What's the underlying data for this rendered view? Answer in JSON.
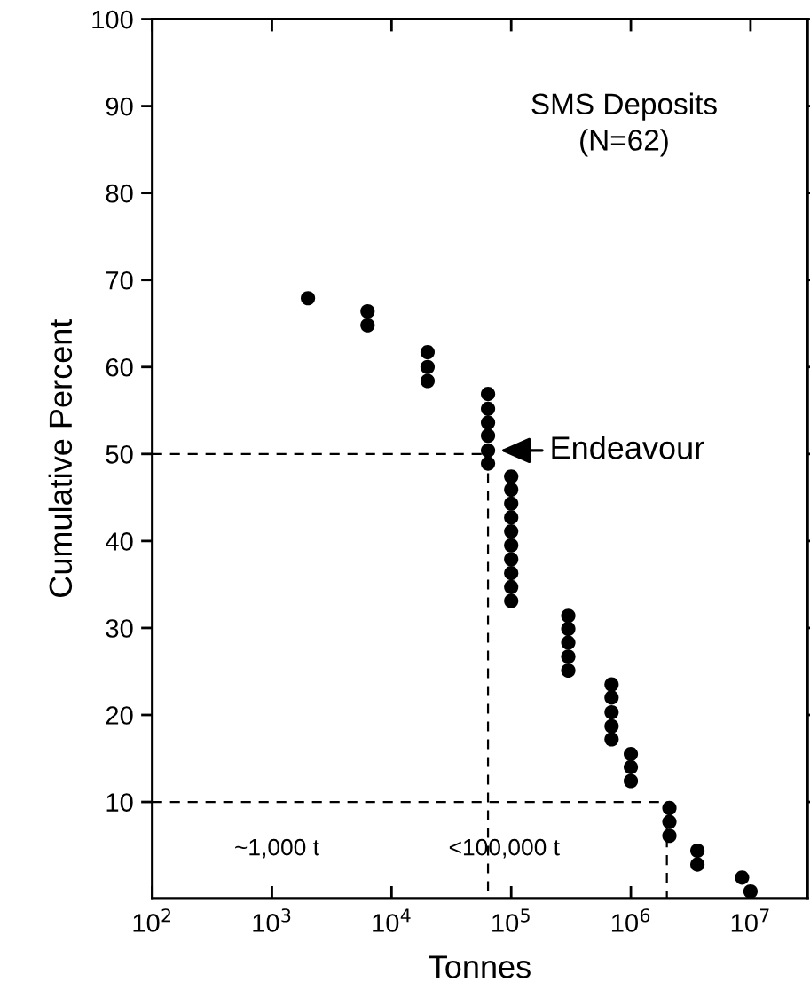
{
  "chart_data": {
    "type": "scatter",
    "title": "SMS Deposits\n(N=62)",
    "xlabel": "Tonnes",
    "ylabel": "Cumulative Percent",
    "log": "x",
    "marker": "circle",
    "grid": false,
    "legend": false,
    "xlim": [
      100,
      30000000
    ],
    "ylim": [
      -1.1,
      100
    ],
    "xticks": [
      {
        "value": 100,
        "label": "10$^{2}$"
      },
      {
        "value": 1000,
        "label": "10$^{3}$"
      },
      {
        "value": 10000,
        "label": "10$^{4}$"
      },
      {
        "value": 100000,
        "label": "10$^{5}$"
      },
      {
        "value": 1000000,
        "label": "10$^{6}$"
      },
      {
        "value": 10000000,
        "label": "10$^{7}$"
      }
    ],
    "yticks": [
      10,
      20,
      30,
      40,
      50,
      60,
      70,
      80,
      90,
      100
    ],
    "series": [
      {
        "color": "#000000",
        "x": [
          2000,
          6300,
          6300,
          20000,
          20000,
          20000,
          64000,
          64000,
          64000,
          64000,
          64000,
          64000,
          100000,
          100000,
          100000,
          100000,
          100000,
          100000,
          100000,
          100000,
          100000,
          100000,
          300000,
          300000,
          300000,
          300000,
          300000,
          690000,
          690000,
          690000,
          690000,
          690000,
          1000000,
          1000000,
          1000000,
          2100000,
          2100000,
          2100000,
          3600000,
          3600000,
          8500000,
          10000000
        ],
        "values": [
          67.9,
          66.4,
          64.8,
          61.7,
          60.0,
          58.4,
          56.9,
          55.2,
          53.6,
          52.1,
          50.4,
          48.9,
          47.4,
          45.9,
          44.3,
          42.7,
          41.1,
          39.5,
          37.9,
          36.3,
          34.7,
          33.1,
          31.4,
          29.9,
          28.3,
          26.7,
          25.1,
          23.5,
          22.0,
          20.3,
          18.7,
          17.2,
          15.5,
          14.0,
          12.4,
          9.3,
          7.7,
          6.1,
          4.4,
          2.8,
          1.3,
          -0.3
        ]
      },
      {
        "type": "line",
        "color": "#000000",
        "line_style": "dashed",
        "marker": "none",
        "x": [
          100,
          64000,
          64000
        ],
        "values": [
          50,
          50,
          -1.1
        ]
      },
      {
        "type": "line",
        "color": "#000000",
        "line_style": "dashed",
        "marker": "none",
        "x": [
          100,
          2000000,
          2000000
        ],
        "values": [
          10,
          10,
          -1.1
        ]
      }
    ],
    "annotations": [
      {
        "text": "Endeavour",
        "x": 64000,
        "y": 50.4
      },
      "~1,000 t",
      "<100,000 t"
    ]
  }
}
